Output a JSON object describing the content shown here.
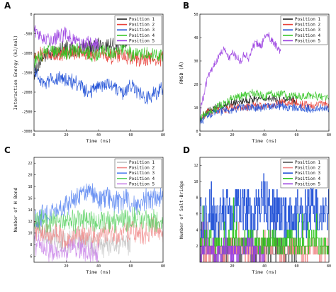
{
  "figure": {
    "panels": [
      {
        "letter": "A",
        "xlabel": "Time (ns)",
        "ylabel": "Interaction Energy (kJ/mol)"
      },
      {
        "letter": "B",
        "xlabel": "Time (ns)",
        "ylabel": "RMSD (Å)"
      },
      {
        "letter": "C",
        "xlabel": "Time (ns)",
        "ylabel": "Number of H Bond"
      },
      {
        "letter": "D",
        "xlabel": "Time (ns)",
        "ylabel": "Number of Salt-Bridge"
      }
    ]
  },
  "chart_data": [
    {
      "type": "line",
      "panel": "A",
      "title": "",
      "xlabel": "Time (ns)",
      "ylabel": "Interaction Energy (kJ/mol)",
      "xlim": [
        0,
        80
      ],
      "ylim": [
        -3000,
        0
      ],
      "xticks": [
        0,
        20,
        40,
        60,
        80
      ],
      "yticks": [
        0,
        -500,
        -1000,
        -1500,
        -2000,
        -2500,
        -3000
      ],
      "legend": "top-right",
      "grid": false,
      "x": [
        0,
        5,
        10,
        15,
        20,
        25,
        30,
        35,
        40,
        45,
        50,
        55,
        60
      ],
      "series": [
        {
          "name": "Position 1",
          "color": "#222222",
          "x": [
            0,
            5,
            10,
            15,
            20,
            25,
            30,
            35,
            40,
            45,
            50,
            55,
            60
          ],
          "values": [
            -1500,
            -1150,
            -1000,
            -950,
            -850,
            -950,
            -900,
            -850,
            -800,
            -800,
            -750,
            -750,
            -700
          ]
        },
        {
          "name": "Position 2",
          "color": "#e8413a",
          "x": [
            0,
            5,
            10,
            15,
            20,
            25,
            30,
            35,
            40,
            45,
            50,
            55,
            60,
            65,
            70,
            75,
            80
          ],
          "values": [
            -1100,
            -1000,
            -1050,
            -1000,
            -1050,
            -1000,
            -950,
            -1050,
            -1000,
            -1050,
            -1100,
            -1050,
            -1100,
            -1150,
            -1100,
            -1150,
            -1150
          ]
        },
        {
          "name": "Position 3",
          "color": "#1f4fd6",
          "x": [
            0,
            5,
            10,
            15,
            20,
            25,
            30,
            35,
            40,
            45,
            50,
            55,
            60,
            65,
            70,
            75,
            80
          ],
          "values": [
            -1400,
            -1800,
            -1700,
            -1650,
            -1700,
            -1750,
            -1900,
            -2000,
            -1850,
            -1800,
            -1850,
            -2050,
            -1850,
            -2000,
            -2150,
            -2000,
            -1900
          ]
        },
        {
          "name": "Position 4",
          "color": "#2fc41f",
          "x": [
            0,
            5,
            10,
            15,
            20,
            25,
            30,
            35,
            40,
            45,
            50,
            55,
            60,
            65,
            70,
            75,
            80
          ],
          "values": [
            -1200,
            -1050,
            -900,
            -950,
            -1000,
            -900,
            -950,
            -1050,
            -1000,
            -950,
            -1000,
            -900,
            -1050,
            -1000,
            -1000,
            -1050,
            -1100
          ]
        },
        {
          "name": "Position 5",
          "color": "#9a3ee0",
          "x": [
            0,
            5,
            10,
            15,
            20,
            25,
            30,
            35,
            40
          ],
          "values": [
            -400,
            -550,
            -650,
            -600,
            -500,
            -650,
            -800,
            -750,
            -850
          ]
        }
      ]
    },
    {
      "type": "line",
      "panel": "B",
      "title": "",
      "xlabel": "Time (ns)",
      "ylabel": "RMSD (Å)",
      "xlim": [
        0,
        80
      ],
      "ylim": [
        0,
        50
      ],
      "xticks": [
        0,
        20,
        40,
        60,
        80
      ],
      "yticks": [
        0,
        10,
        20,
        30,
        40,
        50
      ],
      "legend": "top-right",
      "grid": false,
      "series": [
        {
          "name": "Position 1",
          "color": "#222222",
          "x": [
            0,
            5,
            10,
            15,
            20,
            25,
            30,
            35,
            40,
            45,
            50,
            55,
            60
          ],
          "values": [
            5,
            9,
            10,
            11,
            12,
            13,
            13,
            14,
            14,
            14,
            13,
            14,
            13
          ]
        },
        {
          "name": "Position 2",
          "color": "#e8413a",
          "x": [
            0,
            5,
            10,
            15,
            20,
            25,
            30,
            35,
            40,
            45,
            50,
            55,
            60,
            65,
            70,
            75,
            80
          ],
          "values": [
            6,
            8,
            9,
            9,
            10,
            10,
            10,
            11,
            11,
            11,
            12,
            12,
            12,
            11,
            11,
            12,
            11
          ]
        },
        {
          "name": "Position 3",
          "color": "#1f4fd6",
          "x": [
            0,
            5,
            10,
            15,
            20,
            25,
            30,
            35,
            40,
            45,
            50,
            55,
            60,
            65,
            70,
            75,
            80
          ],
          "values": [
            4,
            7,
            8,
            9,
            9,
            10,
            10,
            10,
            10,
            11,
            11,
            10,
            10,
            10,
            9,
            10,
            9
          ]
        },
        {
          "name": "Position 4",
          "color": "#2fc41f",
          "x": [
            0,
            5,
            10,
            15,
            20,
            25,
            30,
            35,
            40,
            45,
            50,
            55,
            60,
            65,
            70,
            75,
            80
          ],
          "values": [
            6,
            8,
            10,
            12,
            14,
            15,
            16,
            16,
            15,
            16,
            16,
            15,
            15,
            15,
            15,
            15,
            14
          ]
        },
        {
          "name": "Position 5",
          "color": "#9a3ee0",
          "x": [
            0,
            2,
            4,
            6,
            8,
            10,
            12,
            15,
            18,
            20,
            22,
            25,
            28,
            30,
            32,
            35,
            38,
            40,
            42,
            45,
            48,
            50
          ],
          "values": [
            8,
            14,
            20,
            25,
            28,
            30,
            33,
            35,
            31,
            34,
            32,
            30,
            33,
            31,
            35,
            38,
            36,
            40,
            42,
            38,
            36,
            34
          ]
        }
      ]
    },
    {
      "type": "line",
      "panel": "C",
      "title": "",
      "xlabel": "Time (ns)",
      "ylabel": "Number of H Bond",
      "xlim": [
        0,
        80
      ],
      "ylim": [
        5,
        23
      ],
      "xticks": [
        20,
        40,
        60,
        80
      ],
      "yticks": [
        6,
        8,
        10,
        12,
        14,
        16,
        18,
        20,
        22
      ],
      "legend": "top-right",
      "grid": false,
      "series": [
        {
          "name": "Position 1",
          "color": "#c0c0c0",
          "x": [
            0,
            5,
            10,
            15,
            20,
            25,
            30,
            35,
            40,
            45,
            50,
            55,
            60
          ],
          "values": [
            10,
            10,
            9,
            9,
            8,
            9,
            9,
            8,
            8,
            8,
            8,
            8,
            8
          ]
        },
        {
          "name": "Position 2",
          "color": "#f08a8a",
          "x": [
            0,
            5,
            10,
            15,
            20,
            25,
            30,
            35,
            40,
            45,
            50,
            55,
            60,
            65,
            70,
            75,
            80
          ],
          "values": [
            11,
            10,
            10,
            10,
            9,
            10,
            10,
            10,
            9,
            10,
            10,
            10,
            10,
            10,
            10,
            11,
            10
          ]
        },
        {
          "name": "Position 3",
          "color": "#4f7ef0",
          "x": [
            0,
            5,
            10,
            15,
            20,
            25,
            30,
            35,
            40,
            45,
            50,
            55,
            60,
            65,
            70,
            75,
            80
          ],
          "values": [
            12,
            13,
            13,
            14,
            15,
            16,
            17,
            17,
            16,
            16,
            15,
            16,
            15,
            15,
            16,
            16,
            16
          ]
        },
        {
          "name": "Position 4",
          "color": "#58d060",
          "x": [
            0,
            5,
            10,
            15,
            20,
            25,
            30,
            35,
            40,
            45,
            50,
            55,
            60,
            65,
            70,
            75,
            80
          ],
          "values": [
            12,
            12,
            12,
            12,
            12,
            12,
            13,
            12,
            12,
            12,
            12,
            12,
            12,
            13,
            12,
            12,
            12
          ]
        },
        {
          "name": "Position 5",
          "color": "#c880e8",
          "x": [
            0,
            5,
            10,
            15,
            20,
            25,
            30,
            35,
            40
          ],
          "values": [
            8,
            8,
            7,
            7,
            7,
            8,
            7,
            7,
            7
          ]
        }
      ]
    },
    {
      "type": "line",
      "panel": "D",
      "title": "",
      "xlabel": "Time (ns)",
      "ylabel": "Number of Salt-Bridge",
      "xlim": [
        0,
        80
      ],
      "ylim": [
        0,
        13
      ],
      "xticks": [
        20,
        40,
        60,
        80
      ],
      "yticks": [
        2,
        4,
        6,
        8,
        10,
        12
      ],
      "legend": "top-right",
      "grid": false,
      "series": [
        {
          "name": "Position 1",
          "color": "#555555",
          "x": [
            0,
            5,
            10,
            15,
            20,
            25,
            30,
            35,
            40,
            45,
            50,
            55,
            60
          ],
          "values": [
            1,
            2,
            1,
            1,
            2,
            1,
            2,
            1,
            2,
            1,
            2,
            1,
            1
          ]
        },
        {
          "name": "Position 2",
          "color": "#f08a8a",
          "x": [
            0,
            5,
            10,
            15,
            20,
            25,
            30,
            35,
            40,
            45,
            50,
            55,
            60,
            65,
            70,
            75,
            80
          ],
          "values": [
            2,
            1,
            2,
            1,
            2,
            2,
            1,
            2,
            1,
            2,
            1,
            2,
            2,
            1,
            2,
            1,
            2
          ]
        },
        {
          "name": "Position 3",
          "color": "#1f4fd6",
          "x": [
            0,
            5,
            10,
            15,
            20,
            25,
            30,
            35,
            40,
            45,
            50,
            55,
            60,
            65,
            70,
            75,
            80
          ],
          "values": [
            5,
            6,
            5,
            6,
            6,
            7,
            6,
            6,
            7,
            6,
            6,
            5,
            6,
            6,
            7,
            6,
            6
          ]
        },
        {
          "name": "Position 4",
          "color": "#2fc41f",
          "x": [
            0,
            5,
            10,
            15,
            20,
            25,
            30,
            35,
            40,
            45,
            50,
            55,
            60,
            65,
            70,
            75,
            80
          ],
          "values": [
            2,
            3,
            2,
            2,
            3,
            2,
            3,
            2,
            2,
            3,
            2,
            3,
            2,
            2,
            3,
            2,
            2
          ]
        },
        {
          "name": "Position 5",
          "color": "#9a3ee0",
          "x": [
            0,
            5,
            10,
            15,
            20,
            25,
            30,
            35,
            40
          ],
          "values": [
            1,
            2,
            1,
            2,
            1,
            1,
            2,
            1,
            1
          ]
        }
      ]
    }
  ]
}
